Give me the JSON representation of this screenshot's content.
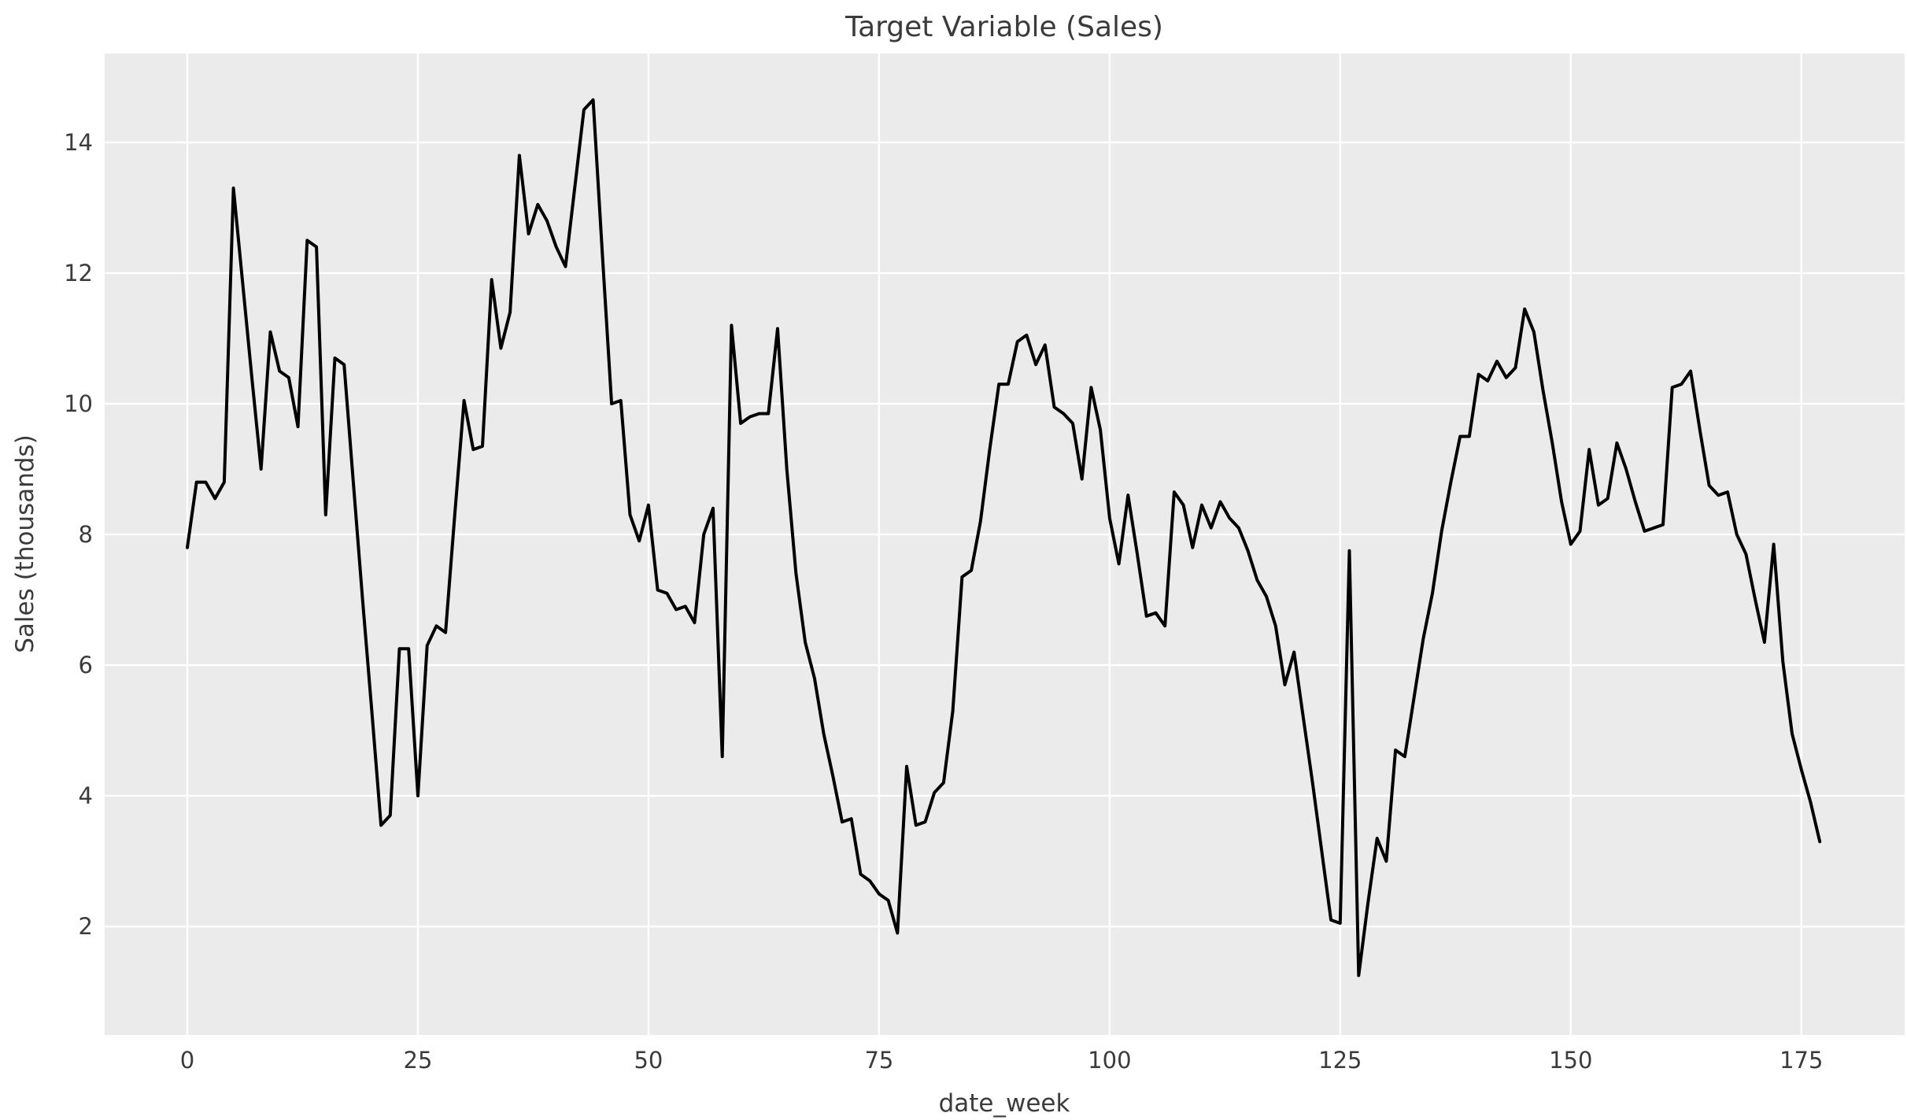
{
  "chart_data": {
    "type": "line",
    "title": "Target Variable (Sales)",
    "xlabel": "date_week",
    "ylabel": "Sales (thousands)",
    "legend": null,
    "grid": true,
    "background_color": "#ebebeb",
    "grid_color": "#ffffff",
    "line_color": "#000000",
    "text_color": "#3b3b3b",
    "xlim": [
      -8.96,
      186.2
    ],
    "ylim": [
      0.34,
      15.36
    ],
    "xticks": [
      0,
      25,
      50,
      75,
      100,
      125,
      150,
      175
    ],
    "yticks": [
      2,
      4,
      6,
      8,
      10,
      12,
      14
    ],
    "x": [
      0,
      1,
      2,
      3,
      4,
      5,
      6,
      7,
      8,
      9,
      10,
      11,
      12,
      13,
      14,
      15,
      16,
      17,
      18,
      19,
      20,
      21,
      22,
      23,
      24,
      25,
      26,
      27,
      28,
      29,
      30,
      31,
      32,
      33,
      34,
      35,
      36,
      37,
      38,
      39,
      40,
      41,
      42,
      43,
      44,
      45,
      46,
      47,
      48,
      49,
      50,
      51,
      52,
      53,
      54,
      55,
      56,
      57,
      58,
      59,
      60,
      61,
      62,
      63,
      64,
      65,
      66,
      67,
      68,
      69,
      70,
      71,
      72,
      73,
      74,
      75,
      76,
      77,
      78,
      79,
      80,
      81,
      82,
      83,
      84,
      85,
      86,
      87,
      88,
      89,
      90,
      91,
      92,
      93,
      94,
      95,
      96,
      97,
      98,
      99,
      100,
      101,
      102,
      103,
      104,
      105,
      106,
      107,
      108,
      109,
      110,
      111,
      112,
      113,
      114,
      115,
      116,
      117,
      118,
      119,
      120,
      121,
      122,
      123,
      124,
      125,
      126,
      127,
      128,
      129,
      130,
      131,
      132,
      133,
      134,
      135,
      136,
      137,
      138,
      139,
      140,
      141,
      142,
      143,
      144,
      145,
      146,
      147,
      148,
      149,
      150,
      151,
      152,
      153,
      154,
      155,
      156,
      157,
      158,
      159,
      160,
      161,
      162,
      163,
      164,
      165,
      166,
      167,
      168,
      169,
      170,
      171,
      172,
      173,
      174,
      175,
      176,
      177
    ],
    "values": [
      7.8,
      8.8,
      8.8,
      8.55,
      8.8,
      13.3,
      11.85,
      10.4,
      9.0,
      11.1,
      10.5,
      10.4,
      9.65,
      12.5,
      12.4,
      8.3,
      10.7,
      10.6,
      8.8,
      7.0,
      5.3,
      3.55,
      3.7,
      6.25,
      6.25,
      4.0,
      6.3,
      6.6,
      6.5,
      8.3,
      10.05,
      9.3,
      9.35,
      11.9,
      10.85,
      11.4,
      13.8,
      12.6,
      13.05,
      12.8,
      12.4,
      12.1,
      13.3,
      14.5,
      14.65,
      12.3,
      10.0,
      10.05,
      8.3,
      7.9,
      8.45,
      7.15,
      7.1,
      6.85,
      6.9,
      6.65,
      8.0,
      8.4,
      4.6,
      11.2,
      9.7,
      9.8,
      9.85,
      9.85,
      11.15,
      9.0,
      7.4,
      6.35,
      5.8,
      4.95,
      4.3,
      3.6,
      3.65,
      2.8,
      2.7,
      2.5,
      2.4,
      1.9,
      4.45,
      3.55,
      3.6,
      4.05,
      4.2,
      5.3,
      7.35,
      7.45,
      8.2,
      9.3,
      10.3,
      10.3,
      10.95,
      11.05,
      10.6,
      10.9,
      9.95,
      9.85,
      9.7,
      8.85,
      10.25,
      9.6,
      8.25,
      7.55,
      8.6,
      7.7,
      6.75,
      6.8,
      6.6,
      8.65,
      8.45,
      7.8,
      8.45,
      8.1,
      8.5,
      8.25,
      8.1,
      7.75,
      7.3,
      7.05,
      6.6,
      5.7,
      6.2,
      5.2,
      4.2,
      3.15,
      2.1,
      2.05,
      7.75,
      1.25,
      2.35,
      3.35,
      3.0,
      4.7,
      4.6,
      5.5,
      6.4,
      7.1,
      8.05,
      8.8,
      9.5,
      9.5,
      10.45,
      10.35,
      10.65,
      10.4,
      10.55,
      11.45,
      11.1,
      10.2,
      9.4,
      8.5,
      7.85,
      8.05,
      9.3,
      8.45,
      8.55,
      9.4,
      9.0,
      8.5,
      8.05,
      8.1,
      8.15,
      10.25,
      10.3,
      10.5,
      9.6,
      8.75,
      8.6,
      8.65,
      8.0,
      7.7,
      7.0,
      6.35,
      7.85,
      6.05,
      4.95,
      4.4,
      3.9,
      3.3
    ]
  }
}
